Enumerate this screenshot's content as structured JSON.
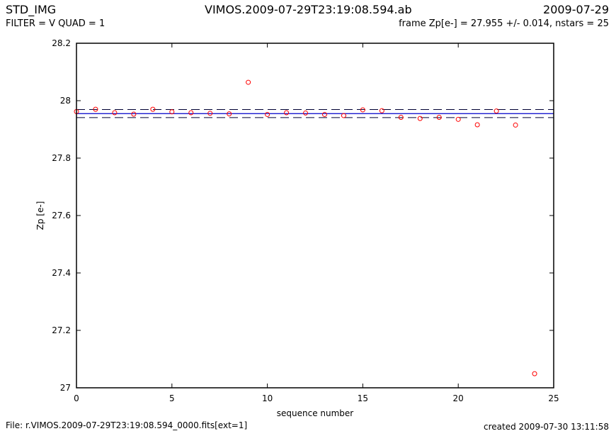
{
  "header": {
    "program": "STD_IMG",
    "filename": "VIMOS.2009-07-29T23:19:08.594.ab",
    "date": "2009-07-29",
    "filter_line": "FILTER = V QUAD = 1",
    "zp_line": "frame Zp[e-] = 27.955 +/- 0.014, nstars = 25"
  },
  "footer": {
    "file": "File: r.VIMOS.2009-07-29T23:19:08.594_0000.fits[ext=1]",
    "created": "created 2009-07-30 13:11:58"
  },
  "chart_data": {
    "type": "scatter",
    "xlabel": "sequence number",
    "ylabel": "Zp [e-]",
    "xlim": [
      0,
      25
    ],
    "ylim": [
      27,
      28.2
    ],
    "xticks": [
      "0",
      "5",
      "10",
      "15",
      "20",
      "25"
    ],
    "yticks": [
      "27",
      "27.2",
      "27.4",
      "27.6",
      "27.8",
      "28",
      "28.2"
    ],
    "grid": false,
    "zp_mean": 27.955,
    "zp_err": 0.014,
    "point_color": "#ff0000",
    "line_color": "#0000cc",
    "x": [
      0,
      1,
      2,
      3,
      4,
      5,
      6,
      7,
      8,
      9,
      10,
      11,
      12,
      13,
      14,
      15,
      16,
      17,
      18,
      19,
      20,
      21,
      22,
      23,
      24
    ],
    "y": [
      27.962,
      27.97,
      27.958,
      27.953,
      27.97,
      27.961,
      27.958,
      27.956,
      27.954,
      28.064,
      27.952,
      27.958,
      27.957,
      27.952,
      27.948,
      27.968,
      27.965,
      27.942,
      27.938,
      27.942,
      27.935,
      27.916,
      27.964,
      27.915,
      27.049
    ]
  }
}
